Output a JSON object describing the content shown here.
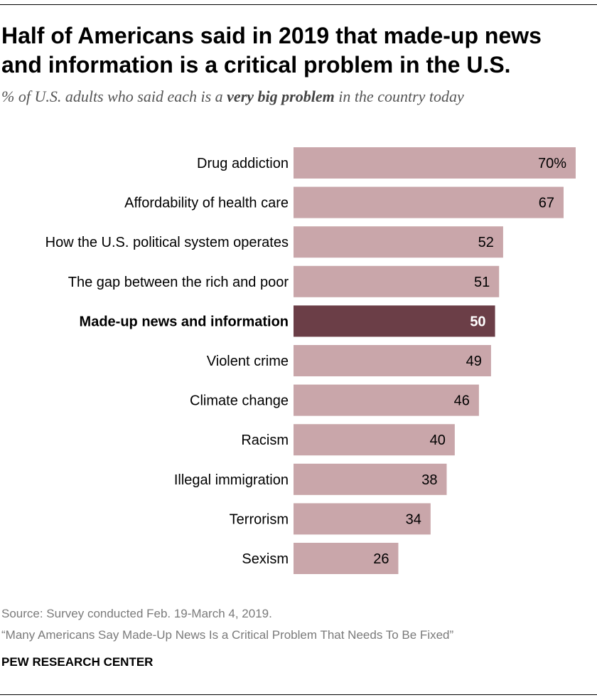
{
  "title": "Half of Americans said in 2019 that made-up news and information is a critical problem in the U.S.",
  "subtitle": {
    "pre": "% of U.S. adults who said each is a ",
    "emph": "very big problem",
    "post": " in the country today"
  },
  "chart_data": {
    "type": "bar",
    "orientation": "horizontal",
    "categories": [
      "Drug addiction",
      "Affordability of health care",
      "How the U.S. political system operates",
      "The gap between the rich and poor",
      "Made-up news and information",
      "Violent crime",
      "Climate change",
      "Racism",
      "Illegal immigration",
      "Terrorism",
      "Sexism"
    ],
    "values": [
      70,
      67,
      52,
      51,
      50,
      49,
      46,
      40,
      38,
      34,
      26
    ],
    "value_labels": [
      "70%",
      "67",
      "52",
      "51",
      "50",
      "49",
      "46",
      "40",
      "38",
      "34",
      "26"
    ],
    "highlight": "Made-up news and information",
    "xlim": [
      0,
      70
    ],
    "unit": "%",
    "bar_color": "#c9a6aa",
    "highlight_color": "#6b3e47"
  },
  "footer": {
    "source": "Source: Survey conducted Feb. 19-March 4, 2019.",
    "report": "“Many Americans Say Made-Up News Is a Critical Problem That Needs To Be Fixed”",
    "brand": "PEW RESEARCH CENTER"
  }
}
